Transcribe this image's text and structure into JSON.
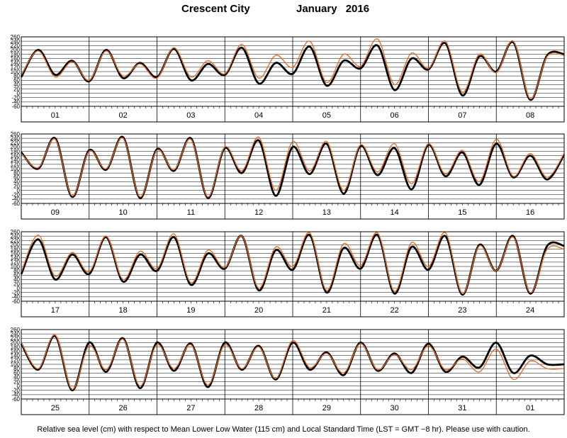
{
  "title": {
    "place": "Crescent City",
    "month": "January",
    "year": "2016"
  },
  "footer_note": "Relative sea level (cm) with respect to Mean Lower Low Water (115 cm) and Local Standard Time (LST = GMT −8 hr). Please use with caution.",
  "colors": {
    "observed": "#000000",
    "predicted": "#e8651f",
    "grid": "#000000"
  },
  "chart_data": [
    {
      "type": "line",
      "y_ticks": [
        260,
        240,
        220,
        200,
        180,
        160,
        140,
        120,
        100,
        80,
        60,
        40,
        20,
        0,
        -20,
        -40,
        -60
      ],
      "ylim": [
        -60,
        260
      ],
      "x_tick_labels": [
        "01",
        "02",
        "03",
        "04",
        "05",
        "06",
        "07",
        "08"
      ],
      "x": [
        0,
        0.25,
        0.5,
        0.75,
        1,
        1.25,
        1.5,
        1.75,
        2,
        2.25,
        2.5,
        2.75,
        3,
        3.25,
        3.5,
        3.75,
        4,
        4.25,
        4.5,
        4.75,
        5,
        5.25,
        5.5,
        5.75,
        6,
        6.25,
        6.5,
        6.75,
        7,
        7.25,
        7.5,
        7.75,
        8
      ],
      "series": [
        {
          "values": [
            75,
            200,
            85,
            150,
            55,
            200,
            70,
            140,
            75,
            205,
            60,
            135,
            85,
            210,
            45,
            140,
            90,
            215,
            35,
            150,
            115,
            220,
            15,
            160,
            110,
            230,
            -10,
            170,
            100,
            235,
            -30,
            175,
            180
          ]
        },
        {
          "values": [
            85,
            195,
            75,
            145,
            60,
            195,
            80,
            135,
            70,
            210,
            75,
            150,
            90,
            225,
            70,
            175,
            120,
            240,
            50,
            180,
            125,
            250,
            40,
            185,
            115,
            240,
            5,
            180,
            95,
            240,
            -25,
            170,
            175
          ]
        }
      ]
    },
    {
      "type": "line",
      "y_ticks": [
        260,
        240,
        220,
        200,
        180,
        160,
        140,
        120,
        100,
        80,
        60,
        40,
        20,
        0,
        -20,
        -40,
        -60
      ],
      "ylim": [
        -60,
        260
      ],
      "x_tick_labels": [
        "09",
        "10",
        "11",
        "12",
        "13",
        "14",
        "15",
        "16"
      ],
      "x": [
        0,
        0.25,
        0.5,
        0.75,
        1,
        1.25,
        1.5,
        1.75,
        2,
        2.25,
        2.5,
        2.75,
        3,
        3.25,
        3.5,
        3.75,
        4,
        4.25,
        4.5,
        4.75,
        5,
        5.25,
        5.5,
        5.75,
        6,
        6.25,
        6.5,
        6.75,
        7,
        7.25,
        7.5,
        7.75,
        8
      ],
      "series": [
        {
          "values": [
            175,
            100,
            240,
            -30,
            185,
            95,
            245,
            -35,
            190,
            90,
            240,
            -35,
            195,
            80,
            230,
            -25,
            200,
            75,
            215,
            -15,
            205,
            70,
            195,
            5,
            210,
            65,
            175,
            25,
            215,
            60,
            160,
            50,
            165
          ]
        },
        {
          "values": [
            170,
            105,
            235,
            -25,
            180,
            100,
            240,
            -30,
            185,
            95,
            235,
            -30,
            200,
            90,
            245,
            0,
            225,
            90,
            225,
            0,
            210,
            85,
            215,
            30,
            215,
            75,
            185,
            40,
            235,
            65,
            170,
            60,
            170
          ]
        }
      ]
    },
    {
      "type": "line",
      "y_ticks": [
        260,
        240,
        220,
        200,
        180,
        160,
        140,
        120,
        100,
        80,
        60,
        40,
        20,
        0,
        -20,
        -40,
        -60
      ],
      "ylim": [
        -60,
        260
      ],
      "x_tick_labels": [
        "17",
        "18",
        "19",
        "20",
        "21",
        "22",
        "23",
        "24"
      ],
      "x": [
        0,
        0.25,
        0.5,
        0.75,
        1,
        1.25,
        1.5,
        1.75,
        2,
        2.25,
        2.5,
        2.75,
        3,
        3.25,
        3.5,
        3.75,
        4,
        4.25,
        4.5,
        4.75,
        5,
        5.25,
        5.5,
        5.75,
        6,
        6.25,
        6.5,
        6.75,
        7,
        7.25,
        7.5,
        7.75,
        8
      ],
      "series": [
        {
          "values": [
            65,
            225,
            40,
            155,
            65,
            235,
            30,
            155,
            80,
            235,
            15,
            160,
            90,
            240,
            -10,
            175,
            85,
            245,
            -20,
            185,
            90,
            245,
            -25,
            190,
            85,
            240,
            -30,
            200,
            80,
            240,
            -25,
            195,
            195
          ]
        },
        {
          "values": [
            75,
            245,
            55,
            165,
            75,
            240,
            40,
            170,
            90,
            250,
            25,
            175,
            95,
            240,
            0,
            190,
            100,
            255,
            -10,
            205,
            105,
            255,
            -15,
            210,
            100,
            255,
            -25,
            195,
            80,
            235,
            -20,
            180,
            180
          ]
        }
      ]
    },
    {
      "type": "line",
      "y_ticks": [
        260,
        240,
        220,
        200,
        180,
        160,
        140,
        120,
        100,
        80,
        60,
        40,
        20,
        0,
        -20,
        -40,
        -60
      ],
      "ylim": [
        -60,
        260
      ],
      "x_tick_labels": [
        "25",
        "26",
        "27",
        "28",
        "29",
        "30",
        "31",
        "01"
      ],
      "x": [
        0,
        0.25,
        0.5,
        0.75,
        1,
        1.25,
        1.5,
        1.75,
        2,
        2.25,
        2.5,
        2.75,
        3,
        3.25,
        3.5,
        3.75,
        4,
        4.25,
        4.5,
        4.75,
        5,
        5.25,
        5.5,
        5.75,
        6,
        6.25,
        6.5,
        6.75,
        7,
        7.25,
        7.5,
        7.75,
        8
      ],
      "series": [
        {
          "values": [
            195,
            75,
            230,
            -20,
            200,
            65,
            220,
            -10,
            200,
            70,
            195,
            -5,
            200,
            75,
            185,
            30,
            200,
            75,
            155,
            50,
            200,
            70,
            150,
            60,
            195,
            65,
            135,
            85,
            200,
            60,
            140,
            100,
            100
          ]
        },
        {
          "values": [
            200,
            80,
            235,
            -15,
            185,
            75,
            215,
            0,
            190,
            80,
            190,
            5,
            190,
            80,
            180,
            35,
            210,
            85,
            150,
            60,
            195,
            75,
            145,
            75,
            185,
            75,
            125,
            65,
            170,
            30,
            115,
            80,
            80
          ]
        }
      ]
    }
  ]
}
